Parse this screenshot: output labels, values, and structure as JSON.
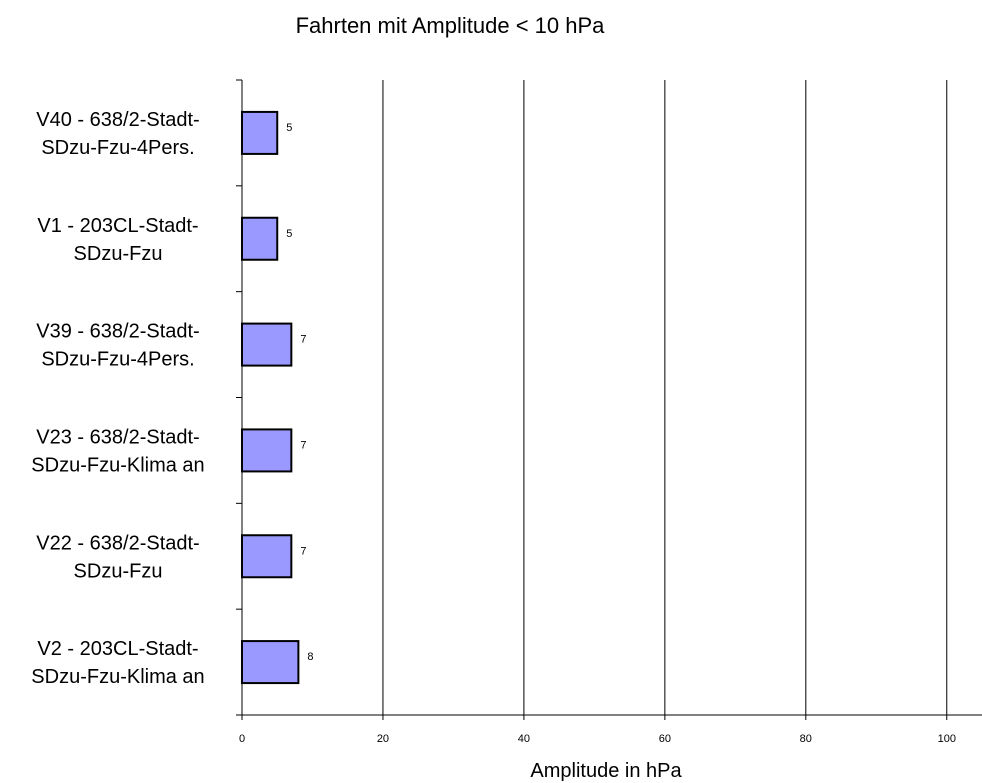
{
  "chart_data": {
    "type": "bar",
    "orientation": "horizontal",
    "title": "Fahrten mit Amplitude < 10 hPa",
    "xlabel": "Amplitude in hPa",
    "ylabel": "",
    "xlim": [
      0,
      105
    ],
    "xticks": [
      0,
      20,
      40,
      60,
      80,
      100
    ],
    "grid": "vertical",
    "categories": [
      [
        "V40 - 638/2-Stadt-",
        "SDzu-Fzu-4Pers."
      ],
      [
        "V1 - 203CL-Stadt-",
        "SDzu-Fzu"
      ],
      [
        "V39 - 638/2-Stadt-",
        "SDzu-Fzu-4Pers."
      ],
      [
        "V23 - 638/2-Stadt-",
        "SDzu-Fzu-Klima an"
      ],
      [
        "V22 - 638/2-Stadt-",
        "SDzu-Fzu"
      ],
      [
        "V2 - 203CL-Stadt-",
        "SDzu-Fzu-Klima an"
      ]
    ],
    "values": [
      5,
      5,
      7,
      7,
      7,
      8
    ],
    "data_labels": [
      "5",
      "5",
      "7",
      "7",
      "7",
      "8"
    ],
    "bar_color": "#9999ff",
    "bar_edge_color": "#000000"
  }
}
